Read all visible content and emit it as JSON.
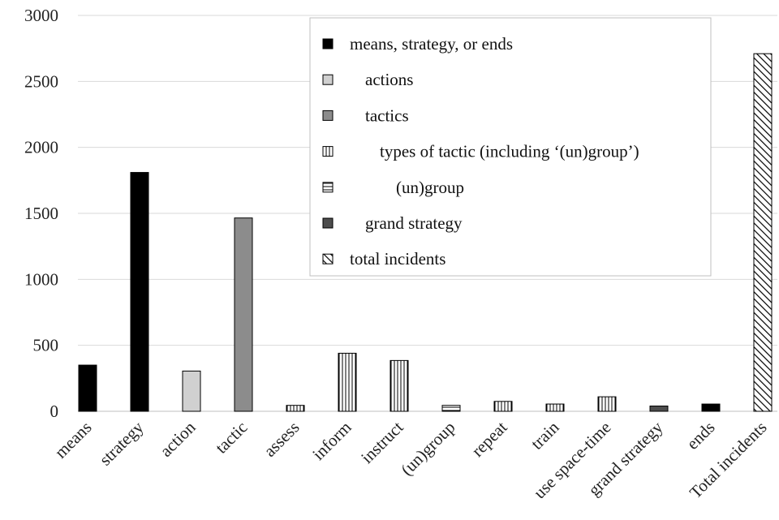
{
  "chart_data": {
    "type": "bar",
    "title": "",
    "xlabel": "",
    "ylabel": "",
    "ylim": [
      0,
      3000
    ],
    "yticks": [
      0,
      500,
      1000,
      1500,
      2000,
      2500,
      3000
    ],
    "ytick_labels": [
      "0",
      "500",
      "1000",
      "1500",
      "2000",
      "2500",
      "3000"
    ],
    "grid": true,
    "legend_position": "top-right",
    "categories": [
      "means",
      "strategy",
      "action",
      "tactic",
      "assess",
      "inform",
      "instruct",
      "(un)group",
      "repeat",
      "train",
      "use space-time",
      "grand strategy",
      "ends",
      "Total incidents"
    ],
    "values": [
      350,
      1810,
      305,
      1465,
      45,
      440,
      385,
      45,
      75,
      55,
      110,
      40,
      55,
      2710
    ],
    "bar_types": [
      "mse",
      "mse",
      "actions",
      "tactics",
      "tactic_types",
      "tactic_types",
      "tactic_types",
      "ungroup",
      "tactic_types",
      "tactic_types",
      "tactic_types",
      "grand",
      "mse",
      "total"
    ],
    "legend": [
      {
        "key": "mse",
        "label": "means, strategy, or ends"
      },
      {
        "key": "actions",
        "label": "actions"
      },
      {
        "key": "tactics",
        "label": "tactics"
      },
      {
        "key": "tactic_types",
        "label": "types of tactic (including ‘(un)group’)"
      },
      {
        "key": "ungroup",
        "label": "(un)group"
      },
      {
        "key": "grand",
        "label": "grand strategy"
      },
      {
        "key": "total",
        "label": "total incidents"
      }
    ],
    "styles": {
      "mse": {
        "fill": "#000000",
        "pattern": "solid"
      },
      "actions": {
        "fill": "#d0d0d0",
        "pattern": "solid"
      },
      "tactics": {
        "fill": "#8c8c8c",
        "pattern": "solid"
      },
      "tactic_types": {
        "fill": "#ffffff",
        "pattern": "vertical"
      },
      "ungroup": {
        "fill": "#ffffff",
        "pattern": "horizontal"
      },
      "grand": {
        "fill": "#4d4d4d",
        "pattern": "solid"
      },
      "total": {
        "fill": "#ffffff",
        "pattern": "diagonal"
      }
    }
  }
}
